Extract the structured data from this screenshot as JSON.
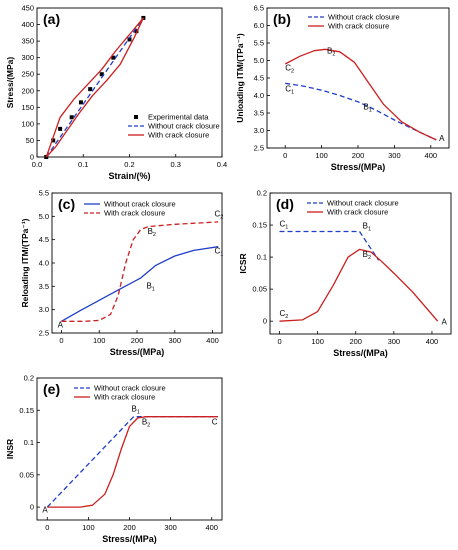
{
  "chart_data": [
    {
      "panel": "(a)",
      "type": "line",
      "xlabel": "Strain/(%)",
      "ylabel": "Stress/(MPa)",
      "xlim": [
        0,
        0.4
      ],
      "ylim": [
        0,
        450
      ],
      "xticks": [
        "0.0",
        "0.1",
        "0.2",
        "0.3",
        "0.4"
      ],
      "yticks": [
        "0",
        "50",
        "100",
        "150",
        "200",
        "250",
        "300",
        "350",
        "400",
        "450"
      ],
      "legend": {
        "placement": "bottom-right",
        "entries": [
          "Experimental data",
          "Without crack closure",
          "With crack closure"
        ]
      },
      "series": [
        {
          "name": "Experimental data",
          "style": "markers",
          "color": "#000000",
          "x": [
            0.02,
            0.035,
            0.05,
            0.075,
            0.095,
            0.115,
            0.14,
            0.165,
            0.2,
            0.215,
            0.23
          ],
          "y": [
            0,
            50,
            85,
            120,
            165,
            205,
            250,
            300,
            355,
            380,
            420
          ]
        },
        {
          "name": "Without crack closure",
          "style": "dashed",
          "color": "#1f3fc8",
          "x": [
            0.02,
            0.23
          ],
          "y": [
            0,
            420
          ]
        },
        {
          "name": "With crack closure",
          "style": "solid",
          "color": "#cc1f1f",
          "x": [
            0.02,
            0.03,
            0.05,
            0.08,
            0.11,
            0.14,
            0.17,
            0.2,
            0.23
          ],
          "y": [
            0,
            40,
            120,
            175,
            220,
            265,
            320,
            370,
            420
          ]
        },
        {
          "name": "With crack closure",
          "style": "solid",
          "color": "#cc1f1f",
          "x": [
            0.02,
            0.04,
            0.06,
            0.09,
            0.12,
            0.15,
            0.18,
            0.21,
            0.23
          ],
          "y": [
            0,
            30,
            70,
            130,
            185,
            230,
            280,
            360,
            420
          ]
        }
      ]
    },
    {
      "panel": "(b)",
      "type": "line",
      "xlabel": "Stress/(MPa)",
      "ylabel": "Unloading ITM/(TPa⁻¹)",
      "xlim": [
        -50,
        450
      ],
      "ylim": [
        2.5,
        6.5
      ],
      "xticks": [
        "0",
        "100",
        "200",
        "300",
        "400"
      ],
      "yticks": [
        "2.5",
        "3.0",
        "3.5",
        "4.0",
        "4.5",
        "5.0",
        "5.5",
        "6.0",
        "6.5"
      ],
      "legend": {
        "placement": "top-right",
        "entries": [
          "Without crack closure",
          "With crack closure"
        ]
      },
      "series": [
        {
          "name": "Without crack closure",
          "style": "dashed",
          "color": "#1f3fc8",
          "x": [
            0,
            50,
            100,
            150,
            200,
            250,
            300,
            350,
            415
          ],
          "y": [
            4.35,
            4.27,
            4.15,
            4.0,
            3.82,
            3.58,
            3.3,
            3.05,
            2.73
          ]
        },
        {
          "name": "With crack closure",
          "style": "solid",
          "color": "#cc1f1f",
          "x": [
            0,
            40,
            80,
            110,
            150,
            190,
            230,
            270,
            320,
            370,
            415
          ],
          "y": [
            4.9,
            5.12,
            5.28,
            5.32,
            5.25,
            4.95,
            4.35,
            3.75,
            3.25,
            2.95,
            2.73
          ]
        }
      ],
      "annotations": [
        {
          "text": "C",
          "sub": "2",
          "x": 0,
          "y": 4.72
        },
        {
          "text": "C",
          "sub": "1",
          "x": 0,
          "y": 4.12
        },
        {
          "text": "B",
          "sub": "2",
          "x": 115,
          "y": 5.2
        },
        {
          "text": "B",
          "sub": "1",
          "x": 215,
          "y": 3.6
        },
        {
          "text": "A",
          "sub": "",
          "x": 423,
          "y": 2.7
        }
      ]
    },
    {
      "panel": "(c)",
      "type": "line",
      "xlabel": "Stress/(MPa)",
      "ylabel": "Reloading ITM/(TPa⁻¹)",
      "xlim": [
        -25,
        425
      ],
      "ylim": [
        2.5,
        5.5
      ],
      "xticks": [
        "0",
        "100",
        "200",
        "300",
        "400"
      ],
      "yticks": [
        "2.5",
        "3.0",
        "3.5",
        "4.0",
        "4.5",
        "5.0",
        "5.5"
      ],
      "legend": {
        "placement": "top-left",
        "entries": [
          "Without crack closure",
          "With crack closure"
        ]
      },
      "series": [
        {
          "name": "Without crack closure",
          "style": "solid",
          "color": "#1f3fc8",
          "x": [
            0,
            50,
            100,
            150,
            210,
            250,
            300,
            350,
            415
          ],
          "y": [
            2.75,
            2.98,
            3.2,
            3.42,
            3.68,
            3.95,
            4.15,
            4.27,
            4.35
          ]
        },
        {
          "name": "With crack closure",
          "style": "dashed",
          "color": "#cc1f1f",
          "x": [
            0,
            60,
            100,
            130,
            150,
            170,
            190,
            210,
            230,
            300,
            415
          ],
          "y": [
            2.75,
            2.75,
            2.77,
            2.9,
            3.3,
            4.0,
            4.5,
            4.72,
            4.78,
            4.83,
            4.88
          ]
        }
      ],
      "annotations": [
        {
          "text": "A",
          "sub": "",
          "x": -10,
          "y": 2.62
        },
        {
          "text": "B",
          "sub": "1",
          "x": 225,
          "y": 3.45
        },
        {
          "text": "B",
          "sub": "2",
          "x": 228,
          "y": 4.62
        },
        {
          "text": "C",
          "sub": "2",
          "x": 405,
          "y": 5.0
        },
        {
          "text": "C",
          "sub": "1",
          "x": 405,
          "y": 4.2
        }
      ]
    },
    {
      "panel": "(d)",
      "type": "line",
      "xlabel": "Stress/(MPa)",
      "ylabel": "ICSR",
      "xlim": [
        -25,
        450
      ],
      "ylim": [
        -0.02,
        0.2
      ],
      "xticks": [
        "0",
        "100",
        "200",
        "300",
        "400"
      ],
      "yticks": [
        "0",
        "0.05",
        "0.1",
        "0.15",
        "0.2"
      ],
      "legend": {
        "placement": "top-right",
        "entries": [
          "Without crack closure",
          "With crack closure"
        ]
      },
      "series": [
        {
          "name": "Without crack closure",
          "style": "dashed",
          "color": "#1f3fc8",
          "x": [
            0,
            210,
            260
          ],
          "y": [
            0.14,
            0.14,
            0.095
          ]
        },
        {
          "name": "With crack closure",
          "style": "solid",
          "color": "#cc1f1f",
          "x": [
            0,
            60,
            100,
            140,
            180,
            210,
            240,
            270,
            300,
            350,
            415
          ],
          "y": [
            0,
            0.002,
            0.015,
            0.055,
            0.1,
            0.112,
            0.108,
            0.092,
            0.075,
            0.045,
            0.0
          ]
        }
      ],
      "annotations": [
        {
          "text": "C",
          "sub": "1",
          "x": 0,
          "y": 0.148
        },
        {
          "text": "B",
          "sub": "1",
          "x": 218,
          "y": 0.145
        },
        {
          "text": "B",
          "sub": "2",
          "x": 218,
          "y": 0.1
        },
        {
          "text": "C",
          "sub": "2",
          "x": 0,
          "y": 0.008
        },
        {
          "text": "A",
          "sub": "",
          "x": 425,
          "y": -0.005
        }
      ]
    },
    {
      "panel": "(e)",
      "type": "line",
      "xlabel": "Stress/(MPa)",
      "ylabel": "INSR",
      "xlim": [
        -25,
        425
      ],
      "ylim": [
        -0.02,
        0.2
      ],
      "xticks": [
        "0",
        "100",
        "200",
        "300",
        "400"
      ],
      "yticks": [
        "0",
        "0.05",
        "0.1",
        "0.15",
        "0.2"
      ],
      "legend": {
        "placement": "top-right",
        "entries": [
          "Without crack closure",
          "With crack closure"
        ]
      },
      "series": [
        {
          "name": "Without crack closure",
          "style": "dashed",
          "color": "#1f3fc8",
          "x": [
            0,
            210,
            415
          ],
          "y": [
            0,
            0.14,
            0.14
          ]
        },
        {
          "name": "With crack closure",
          "style": "solid",
          "color": "#cc1f1f",
          "x": [
            0,
            80,
            110,
            140,
            160,
            180,
            200,
            220,
            240,
            300,
            415
          ],
          "y": [
            0,
            0,
            0.003,
            0.02,
            0.05,
            0.09,
            0.125,
            0.138,
            0.14,
            0.14,
            0.14
          ]
        }
      ],
      "annotations": [
        {
          "text": "A",
          "sub": "",
          "x": -12,
          "y": -0.008
        },
        {
          "text": "B",
          "sub": "1",
          "x": 205,
          "y": 0.148
        },
        {
          "text": "B",
          "sub": "2",
          "x": 230,
          "y": 0.128
        },
        {
          "text": "C",
          "sub": "",
          "x": 400,
          "y": 0.128
        }
      ]
    }
  ]
}
